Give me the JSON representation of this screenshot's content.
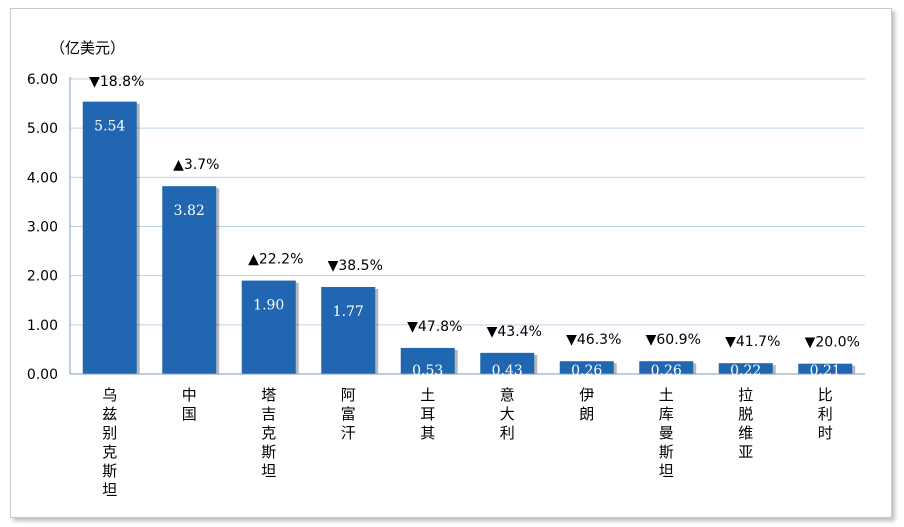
{
  "chart_data": {
    "type": "bar",
    "unit_label": "（亿美元）",
    "categories": [
      "乌兹别克斯坦",
      "中国",
      "塔吉克斯坦",
      "阿富汗",
      "土耳其",
      "意大利",
      "伊朗",
      "土库曼斯坦",
      "拉脱维亚",
      "比利时"
    ],
    "values": [
      5.54,
      3.82,
      1.9,
      1.77,
      0.53,
      0.43,
      0.26,
      0.26,
      0.22,
      0.21
    ],
    "value_labels": [
      "5.54",
      "3.82",
      "1.90",
      "1.77",
      "0.53",
      "0.43",
      "0.26",
      "0.26",
      "0.22",
      "0.21"
    ],
    "changes": [
      {
        "direction": "down",
        "text": "18.8%"
      },
      {
        "direction": "up",
        "text": "3.7%"
      },
      {
        "direction": "up",
        "text": "22.2%"
      },
      {
        "direction": "down",
        "text": "38.5%"
      },
      {
        "direction": "down",
        "text": "47.8%"
      },
      {
        "direction": "down",
        "text": "43.4%"
      },
      {
        "direction": "down",
        "text": "46.3%"
      },
      {
        "direction": "down",
        "text": "60.9%"
      },
      {
        "direction": "down",
        "text": "41.7%"
      },
      {
        "direction": "down",
        "text": "20.0%"
      }
    ],
    "yticks": [
      "0.00",
      "1.00",
      "2.00",
      "3.00",
      "4.00",
      "5.00",
      "6.00"
    ],
    "ylim": [
      0,
      6
    ],
    "grid": true,
    "bar_color": "#2166b0",
    "up_symbol": "▲",
    "down_symbol": "▼"
  }
}
